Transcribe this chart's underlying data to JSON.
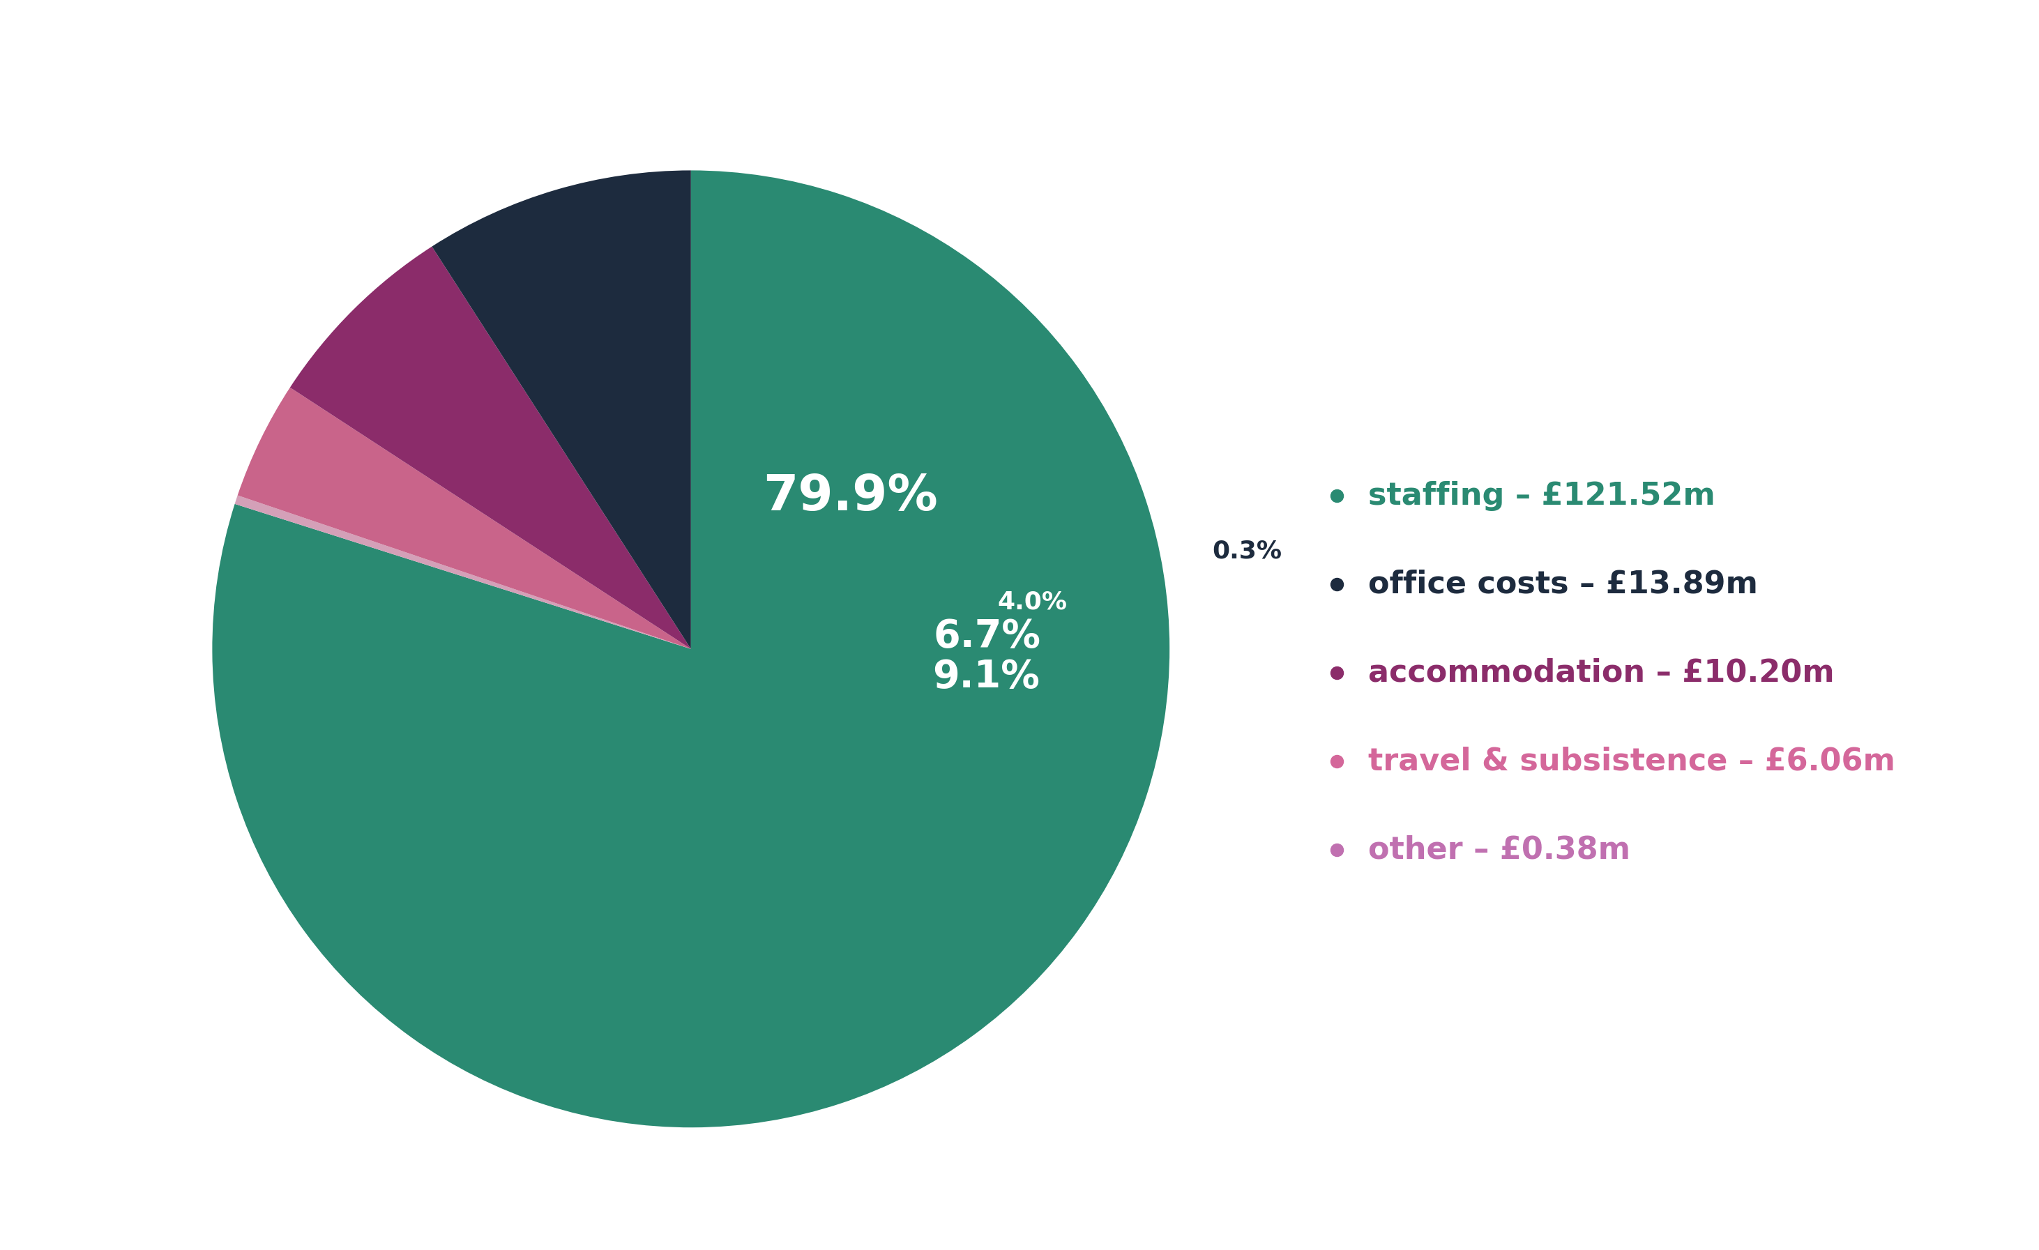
{
  "wedge_sizes": [
    79.9,
    0.3,
    4.0,
    6.7,
    9.1
  ],
  "wedge_colors": [
    "#2a8a72",
    "#d4a0b8",
    "#c9648a",
    "#8b2c6a",
    "#1d2b3e"
  ],
  "wedge_pct": [
    "79.9%",
    "0.3%",
    "4.0%",
    "6.7%",
    "9.1%"
  ],
  "legend_labels": [
    "staffing – £121.52m",
    "office costs – £13.89m",
    "accommodation – £10.20m",
    "travel & subsistence – £6.06m",
    "other – £0.38m"
  ],
  "legend_dot_colors": [
    "#2a8a72",
    "#1d2b3e",
    "#8b2c6a",
    "#d4679a",
    "#c070b0"
  ],
  "legend_text_colors": [
    "#2a8a72",
    "#1d2b3e",
    "#8b2c6a",
    "#d4679a",
    "#c070b0"
  ],
  "background_color": "#ffffff",
  "startangle": 90,
  "label_fontsize_large": 52,
  "label_fontsize_medium": 40,
  "label_fontsize_small": 26,
  "legend_fontsize": 32
}
